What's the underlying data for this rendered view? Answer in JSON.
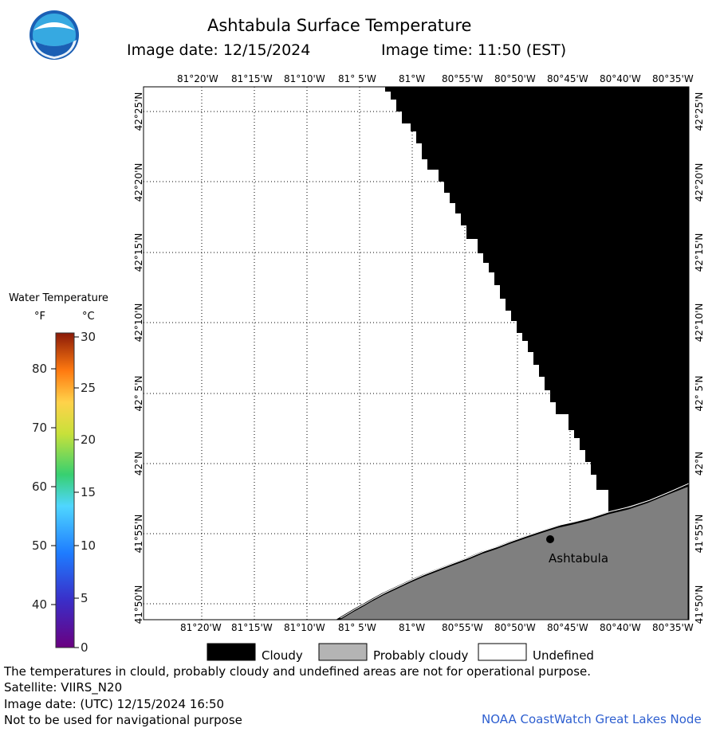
{
  "header": {
    "title": "Ashtabula Surface Temperature",
    "image_date": "Image date: 12/15/2024",
    "image_time": "Image time: 11:50 (EST)"
  },
  "logo": {
    "text": "NOAA",
    "icon": "noaa-logo"
  },
  "map": {
    "lon_labels": [
      "81°20'W",
      "81°15'W",
      "81°10'W",
      "81° 5'W",
      "81°W",
      "80°55'W",
      "80°50'W",
      "80°45'W",
      "80°40'W",
      "80°35'W"
    ],
    "lat_labels_left": [
      "42°25'N",
      "42°20'N",
      "42°15'N",
      "42°10'N",
      "42° 5'N",
      "42°N",
      "41°55'N",
      "41°50'N"
    ],
    "lat_labels_right": [
      "42°25'N",
      "42°20'N",
      "42°15'N",
      "42°10'N",
      "42° 5'N",
      "42°N",
      "41°55'N",
      "41°50'N"
    ],
    "city_label": "Ashtabula",
    "colors": {
      "cloudy": "#000000",
      "probably_cloudy": "#7f7f7f",
      "undefined": "#ffffff"
    }
  },
  "colorbar": {
    "title": "Water Temperature",
    "unit_f": "°F",
    "unit_c": "°C",
    "f_ticks": [
      "80",
      "70",
      "60",
      "50",
      "40"
    ],
    "c_ticks": [
      "30",
      "25",
      "20",
      "15",
      "10",
      "5",
      "0"
    ]
  },
  "legend": {
    "cloudy": "Cloudy",
    "probably_cloudy": "Probably cloudy",
    "undefined": "Undefined"
  },
  "footer": {
    "note": "The temperatures in clould, probably cloudy and undefined areas are not for operational purpose.",
    "satellite": "Satellite: VIIRS_N20",
    "utc_date": "Image date: (UTC) 12/15/2024  16:50",
    "nav_warning": "Not to be used for navigational purpose",
    "credit": "NOAA CoastWatch Great Lakes Node"
  }
}
